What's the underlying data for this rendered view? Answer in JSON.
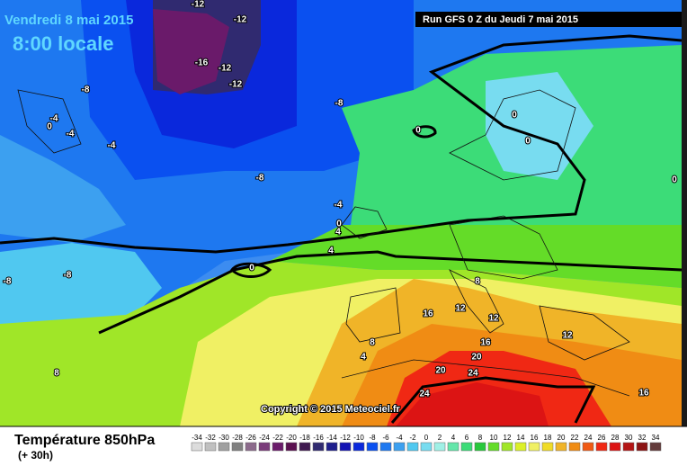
{
  "header": {
    "date": "Vendredi 8 mai 2015",
    "time": "8:00 locale",
    "run": "Run GFS 0 Z du Jeudi 7 mai 2015",
    "copyright": "Copyright © 2015 Meteociel.fr"
  },
  "footer": {
    "title": "Température 850hPa",
    "lead": "(+ 30h)"
  },
  "scale": {
    "values": [
      -34,
      -32,
      -30,
      -28,
      -26,
      -24,
      -22,
      -20,
      -18,
      -16,
      -14,
      -12,
      -10,
      -8,
      -6,
      -4,
      -2,
      0,
      2,
      4,
      6,
      8,
      10,
      12,
      14,
      16,
      18,
      20,
      22,
      24,
      26,
      28,
      30,
      32,
      34
    ],
    "colors": [
      "#dcdcdc",
      "#c0c0c0",
      "#a0a0a0",
      "#808080",
      "#8c6a8c",
      "#7a3c7a",
      "#6a1a6a",
      "#5a1050",
      "#401a50",
      "#302a70",
      "#1e1e8c",
      "#1414b4",
      "#0a28dc",
      "#0a50f0",
      "#1e78f0",
      "#3ca0f0",
      "#50c8f0",
      "#78dcf0",
      "#a0f0e6",
      "#64e6aa",
      "#3cdc78",
      "#28c83c",
      "#64dc28",
      "#a0e628",
      "#dcf028",
      "#f0f064",
      "#f0dc28",
      "#f0b428",
      "#f08c14",
      "#f05a14",
      "#f02814",
      "#dc1414",
      "#b41414",
      "#8c1414",
      "#643c3c"
    ]
  },
  "map": {
    "labels": [
      "-12",
      "-12",
      "-16",
      "-12",
      "-12",
      "-8",
      "-8",
      "-4",
      "0",
      "-4",
      "-4",
      "0",
      "0",
      "0",
      "-8",
      "-4",
      "0",
      "4",
      "4",
      "0",
      "0",
      "-8",
      "-8",
      "8",
      "12",
      "16",
      "12",
      "12",
      "16",
      "8",
      "20",
      "20",
      "24",
      "24",
      "16",
      "8",
      "4"
    ]
  }
}
